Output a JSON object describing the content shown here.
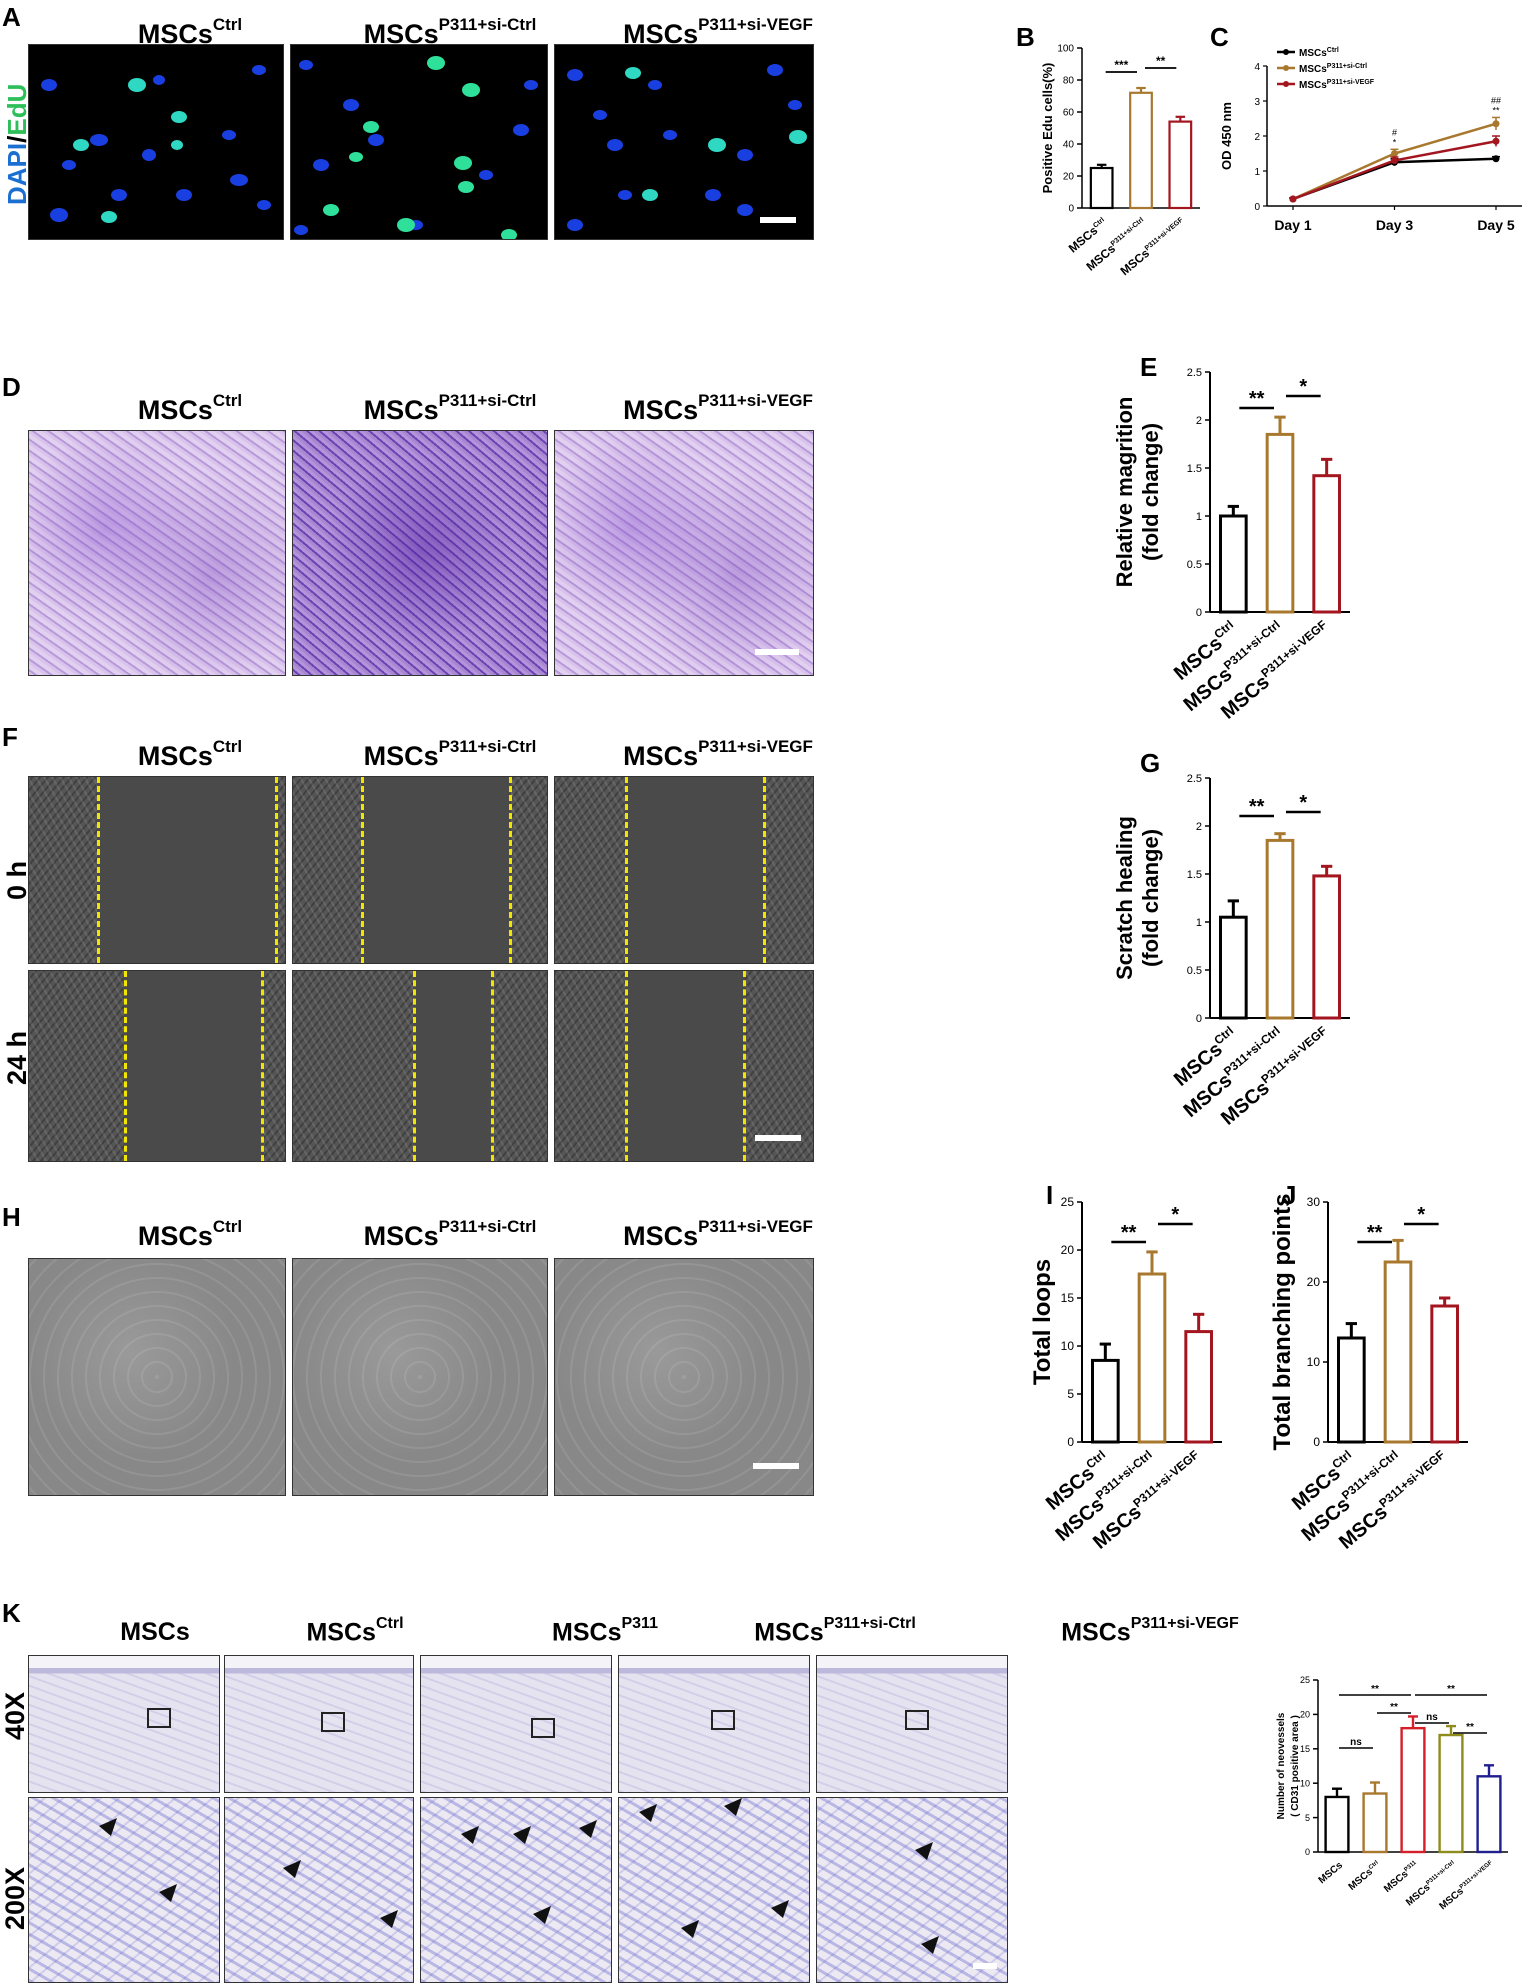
{
  "panel_letters": {
    "A": "A",
    "B": "B",
    "C": "C",
    "D": "D",
    "E": "E",
    "F": "F",
    "G": "G",
    "H": "H",
    "I": "I",
    "J": "J",
    "K": "K"
  },
  "groups3": [
    {
      "base": "MSCs",
      "sup": "Ctrl"
    },
    {
      "base": "MSCs",
      "sup": "P311+si-Ctrl"
    },
    {
      "base": "MSCs",
      "sup": "P311+si-VEGF"
    }
  ],
  "groups5": [
    {
      "base": "MSCs",
      "sup": ""
    },
    {
      "base": "MSCs",
      "sup": "Ctrl"
    },
    {
      "base": "MSCs",
      "sup": "P311"
    },
    {
      "base": "MSCs",
      "sup": "P311+si-Ctrl"
    },
    {
      "base": "MSCs",
      "sup": "P311+si-VEGF"
    }
  ],
  "panelA": {
    "stain_dapi": "DAPI",
    "stain_slash": "/",
    "stain_edu": "EdU"
  },
  "panelF": {
    "rows": [
      "0 h",
      "24 h"
    ]
  },
  "panelK": {
    "rows": [
      "40X",
      "200X"
    ]
  },
  "colors": {
    "ctrl": "#000000",
    "si_ctrl": "#a8782e",
    "si_vegf": "#a31620",
    "p311": "#d4202a",
    "k_si_ctrl": "#8d8c1c",
    "k_si_vegf": "#1f1f8f",
    "dapi": "#1a6fd1",
    "edu": "#2fbf5a"
  },
  "chart_data": [
    {
      "id": "B",
      "type": "bar",
      "ylabel": "Positive Edu cells(%)",
      "categories": [
        "MSCs^Ctrl",
        "MSCs^P311+si-Ctrl",
        "MSCs^P311+si-VEGF"
      ],
      "values": [
        25,
        72,
        54
      ],
      "errors": [
        2,
        3,
        3
      ],
      "ylim": [
        0,
        100
      ],
      "yticks": [
        0,
        20,
        40,
        60,
        80,
        100
      ],
      "significance": [
        {
          "from": 0,
          "to": 1,
          "label": "***"
        },
        {
          "from": 1,
          "to": 2,
          "label": "**"
        }
      ]
    },
    {
      "id": "C",
      "type": "line",
      "ylabel": "OD 450 nm",
      "x": [
        "Day 1",
        "Day 3",
        "Day 5"
      ],
      "ylim": [
        0,
        4
      ],
      "yticks": [
        0,
        1,
        2,
        3,
        4
      ],
      "series": [
        {
          "name": "MSCs^Ctrl",
          "values": [
            0.2,
            1.25,
            1.35
          ],
          "errors": [
            0.03,
            0.1,
            0.06
          ]
        },
        {
          "name": "MSCs^P311+si-Ctrl",
          "values": [
            0.2,
            1.5,
            2.35
          ],
          "errors": [
            0.03,
            0.12,
            0.18
          ]
        },
        {
          "name": "MSCs^P311+si-VEGF",
          "values": [
            0.2,
            1.3,
            1.85
          ],
          "errors": [
            0.03,
            0.1,
            0.15
          ]
        }
      ],
      "annotations": [
        {
          "x": 1,
          "label": "#"
        },
        {
          "x": 1,
          "label": "*"
        },
        {
          "x": 2,
          "label": "##"
        },
        {
          "x": 2,
          "label": "**"
        }
      ],
      "legend": "top-left"
    },
    {
      "id": "E",
      "type": "bar",
      "ylabel": "Relative magrition\n(fold change)",
      "categories": [
        "MSCs^Ctrl",
        "MSCs^P311+si-Ctrl",
        "MSCs^P311+si-VEGF"
      ],
      "values": [
        1.0,
        1.85,
        1.42
      ],
      "errors": [
        0.1,
        0.18,
        0.17
      ],
      "ylim": [
        0,
        2.5
      ],
      "yticks": [
        0.0,
        0.5,
        1.0,
        1.5,
        2.0,
        2.5
      ],
      "significance": [
        {
          "from": 0,
          "to": 1,
          "label": "**"
        },
        {
          "from": 1,
          "to": 2,
          "label": "*"
        }
      ]
    },
    {
      "id": "G",
      "type": "bar",
      "ylabel": "Scratch healing\n(fold change)",
      "categories": [
        "MSCs^Ctrl",
        "MSCs^P311+si-Ctrl",
        "MSCs^P311+si-VEGF"
      ],
      "values": [
        1.05,
        1.85,
        1.48
      ],
      "errors": [
        0.17,
        0.07,
        0.1
      ],
      "ylim": [
        0,
        2.5
      ],
      "yticks": [
        0.0,
        0.5,
        1.0,
        1.5,
        2.0,
        2.5
      ],
      "significance": [
        {
          "from": 0,
          "to": 1,
          "label": "**"
        },
        {
          "from": 1,
          "to": 2,
          "label": "*"
        }
      ]
    },
    {
      "id": "I",
      "type": "bar",
      "ylabel": "Total loops",
      "categories": [
        "MSCs^Ctrl",
        "MSCs^P311+si-Ctrl",
        "MSCs^P311+si-VEGF"
      ],
      "values": [
        8.5,
        17.5,
        11.5
      ],
      "errors": [
        1.7,
        2.3,
        1.8
      ],
      "ylim": [
        0,
        25
      ],
      "yticks": [
        0,
        5,
        10,
        15,
        20,
        25
      ],
      "significance": [
        {
          "from": 0,
          "to": 1,
          "label": "**"
        },
        {
          "from": 1,
          "to": 2,
          "label": "*"
        }
      ]
    },
    {
      "id": "J",
      "type": "bar",
      "ylabel": "Total branching points",
      "categories": [
        "MSCs^Ctrl",
        "MSCs^P311+si-Ctrl",
        "MSCs^P311+si-VEGF"
      ],
      "values": [
        13,
        22.5,
        17
      ],
      "errors": [
        1.8,
        2.7,
        1.0
      ],
      "ylim": [
        0,
        30
      ],
      "yticks": [
        0,
        10,
        20,
        30
      ],
      "significance": [
        {
          "from": 0,
          "to": 1,
          "label": "**"
        },
        {
          "from": 1,
          "to": 2,
          "label": "*"
        }
      ]
    },
    {
      "id": "K",
      "type": "bar",
      "ylabel": "Number of neovessels\n( CD31 positive area )",
      "categories": [
        "MSCs",
        "MSCs^Ctrl",
        "MSCs^P311",
        "MSCs^P311+si-Ctrl",
        "MSCs^P311+si-VEGF"
      ],
      "values": [
        8,
        8.5,
        18,
        17,
        11
      ],
      "errors": [
        1.2,
        1.6,
        1.7,
        1.3,
        1.6
      ],
      "ylim": [
        0,
        25
      ],
      "yticks": [
        0,
        5,
        10,
        15,
        20,
        25
      ],
      "significance": [
        {
          "from": 0,
          "to": 1,
          "label": "ns"
        },
        {
          "from": 1,
          "to": 2,
          "label": "**"
        },
        {
          "from": 2,
          "to": 3,
          "label": "ns"
        },
        {
          "from": 3,
          "to": 4,
          "label": "**"
        },
        {
          "from": 0,
          "to": 2,
          "label": "**"
        },
        {
          "from": 2,
          "to": 4,
          "label": "**"
        }
      ]
    }
  ]
}
